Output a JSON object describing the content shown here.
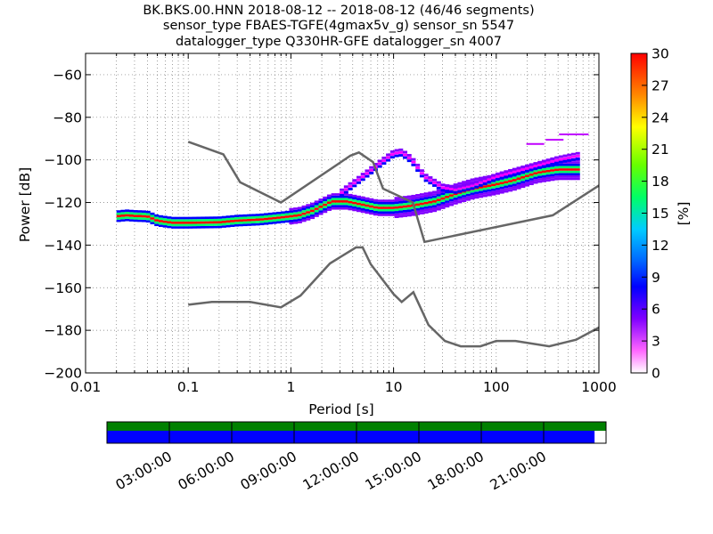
{
  "title_lines": [
    "BK.BKS.00.HNN   2018-08-12 -- 2018-08-12  (46/46 segments)",
    "sensor_type FBAES-TGFE(4gmax5v_g) sensor_sn 5547",
    "datalogger_type Q330HR-GFE datalogger_sn 4007"
  ],
  "chart_data": {
    "type": "heatmap",
    "xlabel": "Period [s]",
    "ylabel": "Power [dB]",
    "x_scale": "log",
    "xlim": [
      0.01,
      1000
    ],
    "ylim": [
      -200,
      -50
    ],
    "x_ticks": [
      {
        "value": 0.01,
        "label": "0.01"
      },
      {
        "value": 0.1,
        "label": "0.1"
      },
      {
        "value": 1,
        "label": "1"
      },
      {
        "value": 10,
        "label": "10"
      },
      {
        "value": 100,
        "label": "100"
      },
      {
        "value": 1000,
        "label": "1000"
      }
    ],
    "y_ticks": [
      -200,
      -180,
      -160,
      -140,
      -120,
      -100,
      -80,
      -60
    ],
    "grid": true,
    "colorbar": {
      "label": "[%]",
      "range": [
        0,
        30
      ],
      "ticks": [
        "30",
        "27",
        "24",
        "21",
        "18",
        "15",
        "12",
        "9",
        "6",
        "3",
        "0"
      ]
    },
    "reference_models": [
      {
        "id": "low-noise-model",
        "points": [
          [
            0.1,
            -168
          ],
          [
            0.17,
            -166.7
          ],
          [
            0.4,
            -166.7
          ],
          [
            0.8,
            -169.2
          ],
          [
            1.24,
            -163.7
          ],
          [
            2.4,
            -148.6
          ],
          [
            4.3,
            -141.1
          ],
          [
            5.0,
            -141.1
          ],
          [
            6.0,
            -149
          ],
          [
            10,
            -163
          ],
          [
            12,
            -166.7
          ],
          [
            15.6,
            -162.1
          ],
          [
            21.9,
            -177.5
          ],
          [
            31.6,
            -185
          ],
          [
            45,
            -187.5
          ],
          [
            70,
            -187.5
          ],
          [
            100,
            -185
          ],
          [
            154,
            -185
          ],
          [
            328,
            -187.5
          ],
          [
            600,
            -184.4
          ],
          [
            1000,
            -178.7
          ]
        ]
      },
      {
        "id": "high-noise-model",
        "points": [
          [
            0.1,
            -91.5
          ],
          [
            0.22,
            -97.4
          ],
          [
            0.32,
            -110.5
          ],
          [
            0.8,
            -120
          ],
          [
            3.8,
            -98
          ],
          [
            4.6,
            -96.5
          ],
          [
            6.3,
            -101
          ],
          [
            7.9,
            -113.5
          ],
          [
            15.4,
            -120
          ],
          [
            20,
            -138.5
          ],
          [
            354.8,
            -126
          ],
          [
            1000,
            -112
          ]
        ]
      }
    ],
    "psd_mode": [
      [
        0.02,
        -126.5
      ],
      [
        0.025,
        -126
      ],
      [
        0.03,
        -126.3
      ],
      [
        0.04,
        -126.5
      ],
      [
        0.05,
        -128.5
      ],
      [
        0.07,
        -129.5
      ],
      [
        0.1,
        -129.5
      ],
      [
        0.2,
        -129.3
      ],
      [
        0.3,
        -128.5
      ],
      [
        0.5,
        -128
      ],
      [
        0.8,
        -127
      ],
      [
        1.2,
        -126
      ],
      [
        1.6,
        -124
      ],
      [
        2.5,
        -119.5
      ],
      [
        3.5,
        -119.5
      ],
      [
        5,
        -121
      ],
      [
        7,
        -122.5
      ],
      [
        10,
        -122.5
      ],
      [
        15,
        -121.5
      ],
      [
        25,
        -119.5
      ],
      [
        40,
        -116
      ],
      [
        60,
        -113.5
      ],
      [
        100,
        -111.5
      ],
      [
        150,
        -109.5
      ],
      [
        250,
        -106
      ],
      [
        400,
        -104.5
      ],
      [
        650,
        -104.5
      ]
    ],
    "psd_upper_branch": [
      [
        3,
        -116
      ],
      [
        5,
        -108
      ],
      [
        7,
        -102.5
      ],
      [
        10,
        -97
      ],
      [
        12,
        -96.5
      ],
      [
        15,
        -100
      ],
      [
        20,
        -108
      ],
      [
        30,
        -113
      ],
      [
        40,
        -114
      ],
      [
        60,
        -112
      ],
      [
        100,
        -108
      ],
      [
        200,
        -104
      ],
      [
        400,
        -100
      ],
      [
        650,
        -98
      ]
    ],
    "psd_outliers": [
      [
        240,
        -92.5
      ],
      [
        370,
        -90.5
      ],
      [
        500,
        -88
      ],
      [
        650,
        -88
      ]
    ]
  },
  "time_axis": {
    "tick_labels": [
      "03:00:00",
      "06:00:00",
      "09:00:00",
      "12:00:00",
      "15:00:00",
      "18:00:00",
      "21:00:00"
    ],
    "coverage_fraction": 0.977,
    "colors": {
      "top_bar": "#008000",
      "coverage_bar": "#0000ff"
    }
  },
  "colors": {
    "reference_model": "#666666",
    "outliers": "#c000ff"
  }
}
